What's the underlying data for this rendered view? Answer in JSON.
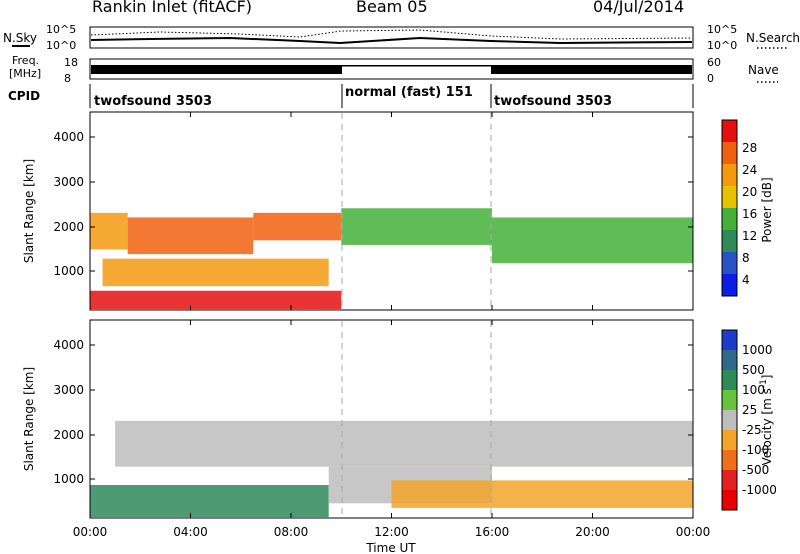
{
  "header": {
    "station": "Rankin Inlet (fitACF)",
    "beam": "Beam 05",
    "date": "04/Jul/2014"
  },
  "strip": {
    "nsky_label": "N.Sky",
    "nsearch_label": "N.Search",
    "noise_ticks": [
      "10^5",
      "10^0"
    ],
    "freq_label_1": "Freq.",
    "freq_label_2": "[MHz]",
    "freq_ticks": [
      "18",
      "8"
    ],
    "nave_label": "Nave",
    "nave_ticks": [
      "60",
      "0"
    ],
    "cpid_label": "CPID",
    "cpid_segments": [
      {
        "label": "twofsound 3503",
        "start": 0,
        "end": 10
      },
      {
        "label": "normal (fast) 151",
        "start": 10,
        "end": 16
      },
      {
        "label": "twofsound 3503",
        "start": 16,
        "end": 24
      }
    ]
  },
  "chart_data": [
    {
      "type": "heatmap",
      "panel": "power",
      "xlabel": "Time UT",
      "ylabel": "Slant Range [km]",
      "xlim": [
        0,
        24
      ],
      "ylim": [
        180,
        4500
      ],
      "yticks": [
        "1000",
        "2000",
        "3000",
        "4000"
      ],
      "xtick_values": [
        0,
        4,
        8,
        12,
        16,
        20,
        24
      ],
      "xticks": [
        "00:00",
        "04:00",
        "08:00",
        "12:00",
        "16:00",
        "20:00",
        "00:00"
      ],
      "colorbar": {
        "label": "Power [dB]",
        "ticks": [
          "4",
          "8",
          "12",
          "16",
          "20",
          "24",
          "28"
        ],
        "colors": [
          "#0a1ee6",
          "#2a52c8",
          "#2f8a5a",
          "#44b03a",
          "#e6c200",
          "#f49a10",
          "#f06010",
          "#e41010"
        ]
      },
      "bands": [
        {
          "t0": 0.0,
          "t1": 1.5,
          "r0": 1500,
          "r1": 2300,
          "level": 5
        },
        {
          "t0": 1.5,
          "t1": 6.5,
          "r0": 1400,
          "r1": 2200,
          "level": 6
        },
        {
          "t0": 6.5,
          "t1": 10.0,
          "r0": 1700,
          "r1": 2300,
          "level": 6
        },
        {
          "t0": 10.0,
          "t1": 16.0,
          "r0": 1600,
          "r1": 2400,
          "level": 3
        },
        {
          "t0": 16.0,
          "t1": 24.0,
          "r0": 1200,
          "r1": 2200,
          "level": 3
        },
        {
          "t0": 0.5,
          "t1": 9.5,
          "r0": 700,
          "r1": 1300,
          "level": 5
        },
        {
          "t0": 0.0,
          "t1": 10.0,
          "r0": 200,
          "r1": 600,
          "level": 7
        }
      ]
    },
    {
      "type": "heatmap",
      "panel": "velocity",
      "xlabel": "Time UT",
      "ylabel": "Slant Range [km]",
      "xlim": [
        0,
        24
      ],
      "ylim": [
        180,
        4500
      ],
      "yticks": [
        "1000",
        "2000",
        "3000",
        "4000"
      ],
      "xtick_values": [
        0,
        4,
        8,
        12,
        16,
        20,
        24
      ],
      "xticks": [
        "00:00",
        "04:00",
        "08:00",
        "12:00",
        "16:00",
        "20:00",
        "00:00"
      ],
      "colorbar": {
        "label": "Velocity [m s",
        "ticks": [
          "1000",
          "500",
          "100",
          "25",
          "-25",
          "-100",
          "-500",
          "-1000"
        ],
        "colors": [
          "#1e3cc8",
          "#2f6a8a",
          "#2f8a5a",
          "#66c43a",
          "#bdbdbd",
          "#f3a52a",
          "#f0701a",
          "#e22020",
          "#e60000"
        ]
      },
      "bands": [
        {
          "t0": 1.0,
          "t1": 24.0,
          "r0": 1300,
          "r1": 2300,
          "level": 4
        },
        {
          "t0": 0.0,
          "t1": 9.5,
          "r0": 200,
          "r1": 900,
          "level": 2
        },
        {
          "t0": 9.5,
          "t1": 16.0,
          "r0": 500,
          "r1": 1300,
          "level": 4
        },
        {
          "t0": 12.0,
          "t1": 24.0,
          "r0": 400,
          "r1": 1000,
          "level": 5
        }
      ]
    }
  ]
}
